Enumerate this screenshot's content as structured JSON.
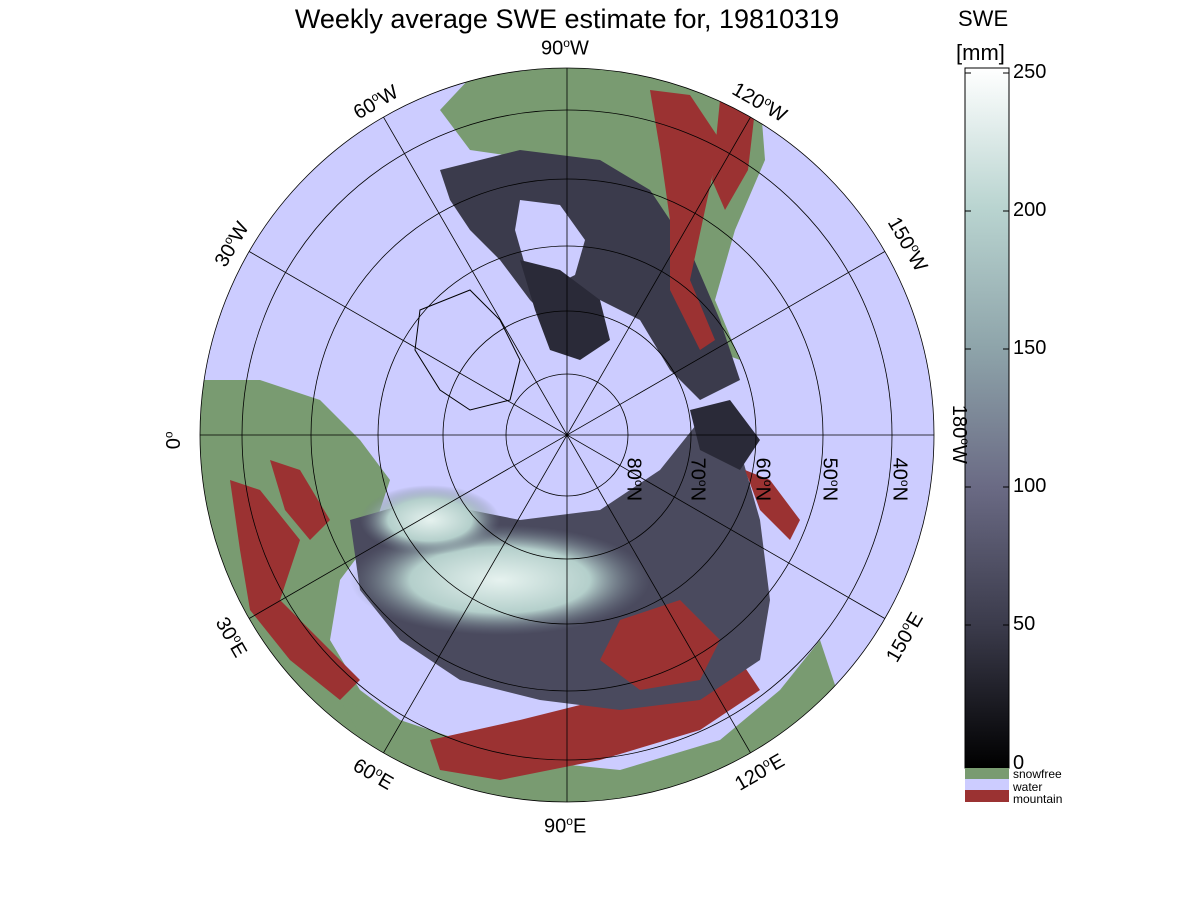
{
  "title": "Weekly average SWE estimate for, 19810319",
  "colorbar": {
    "title_line1": "SWE",
    "title_line2": "[mm]",
    "ticks": [
      "0",
      "50",
      "100",
      "150",
      "200",
      "250"
    ],
    "range": [
      0,
      250
    ],
    "classes": [
      {
        "label": "snowfree",
        "color": "#799b71"
      },
      {
        "label": "water",
        "color": "#ccccff"
      },
      {
        "label": "mountain",
        "color": "#9b3232"
      }
    ]
  },
  "longitude_labels": {
    "lon_90W": {
      "num": "90",
      "deg": "o",
      "dir": "W"
    },
    "lon_120W": {
      "num": "120",
      "deg": "o",
      "dir": "W"
    },
    "lon_150W": {
      "num": "150",
      "deg": "o",
      "dir": "W"
    },
    "lon_180W": {
      "num": "180",
      "deg": "o",
      "dir": "W"
    },
    "lon_60W": {
      "num": "60",
      "deg": "o",
      "dir": "W"
    },
    "lon_30W": {
      "num": "30",
      "deg": "o",
      "dir": "W"
    },
    "lon_0": {
      "num": "0",
      "deg": "o",
      "dir": ""
    },
    "lon_30E": {
      "num": "30",
      "deg": "o",
      "dir": "E"
    },
    "lon_60E": {
      "num": "60",
      "deg": "o",
      "dir": "E"
    },
    "lon_90E": {
      "num": "90",
      "deg": "o",
      "dir": "E"
    },
    "lon_120E": {
      "num": "120",
      "deg": "o",
      "dir": "E"
    },
    "lon_150E": {
      "num": "150",
      "deg": "o",
      "dir": "E"
    }
  },
  "latitude_labels": {
    "lat_80N": {
      "num": "80",
      "deg": "o",
      "dir": "N"
    },
    "lat_70N": {
      "num": "70",
      "deg": "o",
      "dir": "N"
    },
    "lat_60N": {
      "num": "60",
      "deg": "o",
      "dir": "N"
    },
    "lat_50N": {
      "num": "50",
      "deg": "o",
      "dir": "N"
    },
    "lat_40N": {
      "num": "40",
      "deg": "o",
      "dir": "N"
    }
  }
}
